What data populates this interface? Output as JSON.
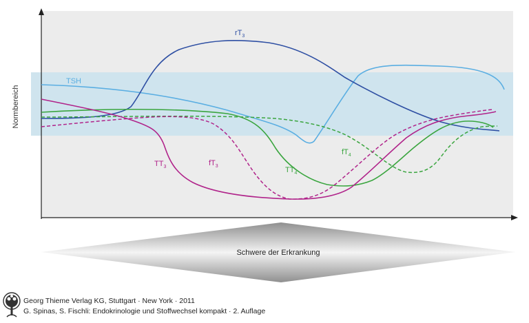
{
  "diagram": {
    "y_axis_label": "Normbereich",
    "severity_label": "Schwere der Erkrankung",
    "curves": [
      {
        "id": "rT3",
        "base": "rT",
        "sub": "3",
        "color": "#2e4fa3",
        "dashed": false
      },
      {
        "id": "TSH",
        "base": "TSH",
        "sub": "",
        "color": "#5aaee2",
        "dashed": false
      },
      {
        "id": "TT4",
        "base": "TT",
        "sub": "4",
        "color": "#3aa53f",
        "dashed": false
      },
      {
        "id": "fT4",
        "base": "fT",
        "sub": "4",
        "color": "#3aa53f",
        "dashed": true
      },
      {
        "id": "TT3",
        "base": "TT",
        "sub": "3",
        "color": "#b0238a",
        "dashed": false
      },
      {
        "id": "fT3",
        "base": "fT",
        "sub": "3",
        "color": "#b0238a",
        "dashed": true
      }
    ],
    "colors": {
      "plot_background": "#ececec",
      "normal_range_band": "#cfe4ee",
      "arrow_fill_dark": "#8f8f8f",
      "arrow_fill_light": "#f4f4f4"
    }
  },
  "footer": {
    "logo_icon": "tree-logo-icon",
    "publisher": "Georg Thieme Verlag KG, Stuttgart · New York · 2011",
    "citation": "G. Spinas, S. Fischli: Endokrinologie und Stoffwechsel kompakt · 2. Auflage"
  }
}
